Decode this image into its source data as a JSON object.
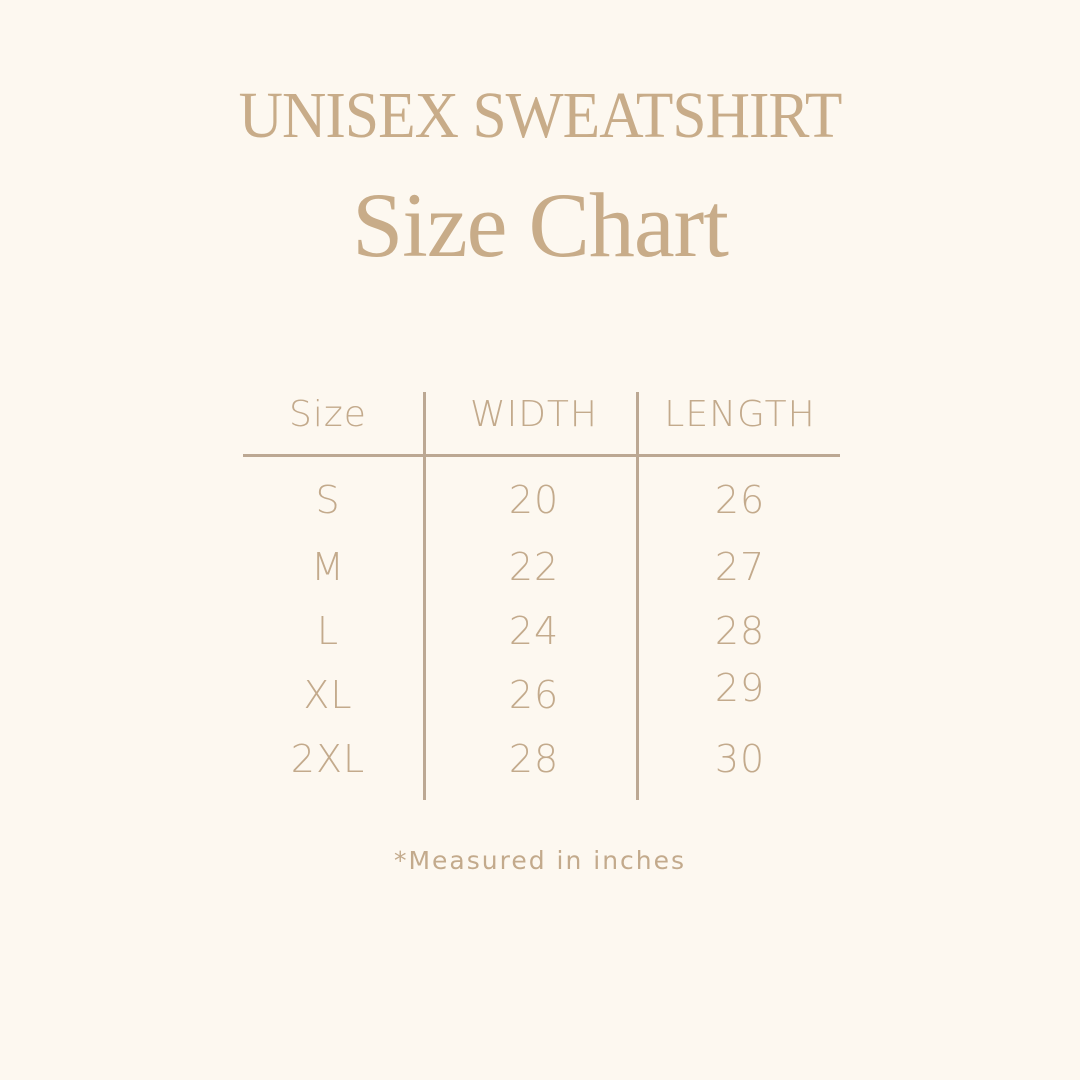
{
  "title": "UNISEX SWEATSHIRT",
  "subtitle": "Size Chart",
  "table": {
    "headers": [
      "Size",
      "WIDTH",
      "LENGTH"
    ],
    "rows": [
      [
        "S",
        "20",
        "26"
      ],
      [
        "M",
        "22",
        "27"
      ],
      [
        "L",
        "24",
        "28"
      ],
      [
        "XL",
        "26",
        "29"
      ],
      [
        "2XL",
        "28",
        "30"
      ]
    ]
  },
  "footnote": "*Measured in inches",
  "colors": {
    "background": "#fdf8f0",
    "text": "#c3aa8c",
    "lines": "#bca893"
  }
}
